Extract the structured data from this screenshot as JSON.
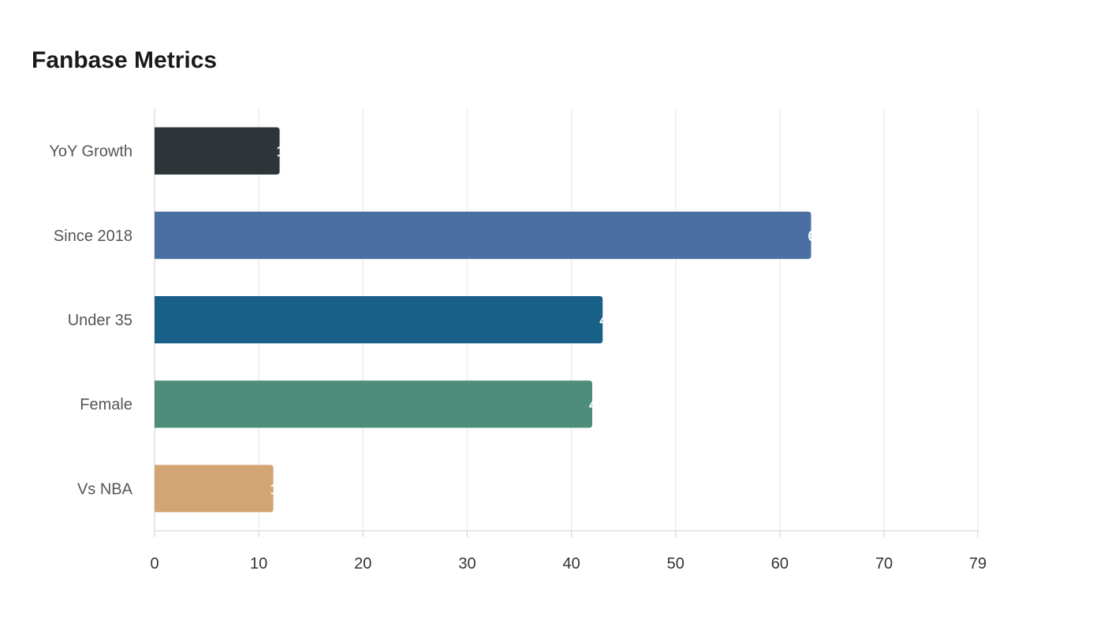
{
  "chart_data": {
    "type": "bar",
    "orientation": "horizontal",
    "title": "Fanbase Metrics",
    "categories": [
      "YoY Growth",
      "Since 2018",
      "Under 35",
      "Female",
      "Vs NBA"
    ],
    "values": [
      12,
      63,
      43,
      42,
      11.4
    ],
    "colors": [
      "#2e3538",
      "#4a6fa3",
      "#186088",
      "#4f8d7b",
      "#d3a574"
    ],
    "xlim": [
      0,
      79
    ],
    "xticks": [
      0,
      10,
      20,
      30,
      40,
      50,
      60,
      70,
      79
    ],
    "grid": true,
    "xlabel": "",
    "ylabel": ""
  }
}
